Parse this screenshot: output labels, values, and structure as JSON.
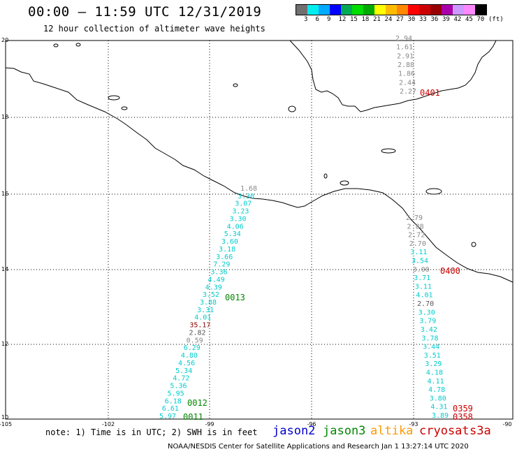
{
  "header": {
    "title": "00:00 – 11:59 UTC 12/31/2019",
    "subtitle": "12 hour collection of altimeter wave heights"
  },
  "legend": {
    "unit": "(ft)",
    "colors": [
      "#707070",
      "#00eeee",
      "#00aaff",
      "#0000ff",
      "#00aa55",
      "#00dd00",
      "#00aa00",
      "#ffff00",
      "#ffbb00",
      "#ff8800",
      "#ff0000",
      "#cc0000",
      "#990000",
      "#aa00aa",
      "#cc99ff",
      "#ff88ff",
      "#000000"
    ],
    "labels": [
      "3",
      "6",
      "9",
      "12",
      "15",
      "18",
      "21",
      "24",
      "27",
      "30",
      "33",
      "36",
      "39",
      "42",
      "45",
      "70"
    ]
  },
  "map": {
    "lon_ticks": [
      "-105",
      "-102",
      "-99",
      "-96",
      "-93",
      "-90"
    ],
    "lat_ticks": [
      "20",
      "18",
      "16",
      "14",
      "12",
      "10"
    ]
  },
  "track_labels": [
    {
      "text": "0013",
      "color": "#008800"
    },
    {
      "text": "0012",
      "color": "#008800"
    },
    {
      "text": "0011",
      "color": "#008800"
    },
    {
      "text": "0401",
      "color": "#cc0000"
    },
    {
      "text": "0400",
      "color": "#cc0000"
    },
    {
      "text": "0359",
      "color": "#cc0000"
    },
    {
      "text": "0358",
      "color": "#cc0000"
    }
  ],
  "tracks": [
    {
      "name": "west",
      "values": [
        {
          "v": "1.68",
          "c": "#888888"
        },
        {
          "v": "3.30",
          "c": "#00cccc"
        },
        {
          "v": "3.07",
          "c": "#00cccc"
        },
        {
          "v": "3.23",
          "c": "#00cccc"
        },
        {
          "v": "3.30",
          "c": "#00cccc"
        },
        {
          "v": "4.06",
          "c": "#00cccc"
        },
        {
          "v": "5.34",
          "c": "#00cccc"
        },
        {
          "v": "3.60",
          "c": "#00cccc"
        },
        {
          "v": "3.18",
          "c": "#00cccc"
        },
        {
          "v": "3.66",
          "c": "#00cccc"
        },
        {
          "v": "7.29",
          "c": "#00cccc"
        },
        {
          "v": "3.36",
          "c": "#00cccc"
        },
        {
          "v": "4.49",
          "c": "#00cccc"
        },
        {
          "v": "4.39",
          "c": "#00cccc"
        },
        {
          "v": "3.52",
          "c": "#00cccc"
        },
        {
          "v": "3.88",
          "c": "#00cccc"
        },
        {
          "v": "3.31",
          "c": "#00cccc"
        },
        {
          "v": "4.01",
          "c": "#00cccc"
        },
        {
          "v": "35.17",
          "c": "#880000"
        },
        {
          "v": "2.82",
          "c": "#555555"
        },
        {
          "v": "0.59",
          "c": "#888888"
        },
        {
          "v": "6.29",
          "c": "#00cccc"
        },
        {
          "v": "4.80",
          "c": "#00cccc"
        },
        {
          "v": "4.56",
          "c": "#00cccc"
        },
        {
          "v": "5.34",
          "c": "#00cccc"
        },
        {
          "v": "4.72",
          "c": "#00cccc"
        },
        {
          "v": "5.36",
          "c": "#00cccc"
        },
        {
          "v": "5.95",
          "c": "#00cccc"
        },
        {
          "v": "6.18",
          "c": "#00cccc"
        },
        {
          "v": "6.61",
          "c": "#00cccc"
        },
        {
          "v": "5.97",
          "c": "#00cccc"
        }
      ]
    },
    {
      "name": "north",
      "values": [
        {
          "v": "2.94",
          "c": "#888888"
        },
        {
          "v": "1.61",
          "c": "#888888"
        },
        {
          "v": "2.91",
          "c": "#888888"
        },
        {
          "v": "2.88",
          "c": "#888888"
        },
        {
          "v": "1.86",
          "c": "#888888"
        },
        {
          "v": "2.44",
          "c": "#888888"
        },
        {
          "v": "2.27",
          "c": "#888888"
        }
      ]
    },
    {
      "name": "east",
      "values": [
        {
          "v": "2.79",
          "c": "#888888"
        },
        {
          "v": "2.88",
          "c": "#888888"
        },
        {
          "v": "2.72",
          "c": "#888888"
        },
        {
          "v": "2.70",
          "c": "#888888"
        },
        {
          "v": "3.11",
          "c": "#00cccc"
        },
        {
          "v": "3.54",
          "c": "#00cccc"
        },
        {
          "v": "3.00",
          "c": "#888888"
        },
        {
          "v": "3.71",
          "c": "#00cccc"
        },
        {
          "v": "3.11",
          "c": "#00cccc"
        },
        {
          "v": "4.01",
          "c": "#00cccc"
        },
        {
          "v": "2.70",
          "c": "#555555"
        },
        {
          "v": "3.30",
          "c": "#00cccc"
        },
        {
          "v": "3.79",
          "c": "#00cccc"
        },
        {
          "v": "3.42",
          "c": "#00cccc"
        },
        {
          "v": "3.78",
          "c": "#00cccc"
        },
        {
          "v": "3.44",
          "c": "#00cccc"
        },
        {
          "v": "3.51",
          "c": "#00cccc"
        },
        {
          "v": "3.29",
          "c": "#00cccc"
        },
        {
          "v": "4.18",
          "c": "#00cccc"
        },
        {
          "v": "4.11",
          "c": "#00cccc"
        },
        {
          "v": "4.78",
          "c": "#00cccc"
        },
        {
          "v": "3.80",
          "c": "#00cccc"
        },
        {
          "v": "4.31",
          "c": "#00cccc"
        },
        {
          "v": "3.89",
          "c": "#00cccc"
        }
      ]
    }
  ],
  "notes": "note: 1) Time is in UTC; 2) SWH is in feet",
  "satellites": [
    {
      "name": "jason2",
      "color": "#0000cc"
    },
    {
      "name": "jason3",
      "color": "#008800"
    },
    {
      "name": "altika",
      "color": "#ff9900"
    },
    {
      "name": "cryosat",
      "color": "#cc0000"
    },
    {
      "name": "s3a",
      "color": "#cc0000"
    }
  ],
  "footer": "NOAA/NESDIS Center for Satellite Applications and Research    Jan  1 13:27:14 UTC 2020"
}
